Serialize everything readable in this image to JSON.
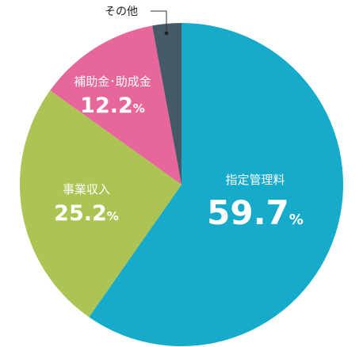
{
  "chart_data": {
    "type": "pie",
    "unit": "%",
    "slices": [
      {
        "label": "指定管理料",
        "value": 59.7,
        "value_text": "59.7",
        "color": "#16aacb"
      },
      {
        "label": "事業収入",
        "value": 25.2,
        "value_text": "25.2",
        "color": "#abc454"
      },
      {
        "label": "補助金･助成金",
        "value": 12.2,
        "value_text": "12.2",
        "color": "#e8679a"
      },
      {
        "label": "その他",
        "value": 2.9,
        "color": "#455a66"
      }
    ]
  }
}
